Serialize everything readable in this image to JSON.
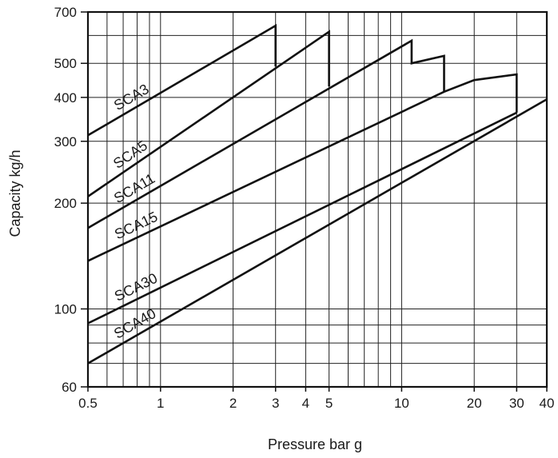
{
  "chart_data": {
    "type": "line",
    "title": "",
    "xlabel": "Pressure bar g",
    "ylabel": "Capacity kg/h",
    "x_scale": "log",
    "y_scale": "log",
    "xlim": [
      0.5,
      40
    ],
    "ylim": [
      60,
      700
    ],
    "grid": true,
    "x_ticks": [
      0.5,
      1,
      2,
      3,
      4,
      5,
      10,
      20,
      30,
      40
    ],
    "x_tick_labels": [
      "0.5",
      "1",
      "2",
      "3",
      "4",
      "5",
      "10",
      "20",
      "30",
      "40"
    ],
    "x_gridlines": [
      0.5,
      0.6,
      0.7,
      0.8,
      0.9,
      1,
      2,
      3,
      4,
      5,
      6,
      7,
      8,
      9,
      10,
      20,
      30,
      40
    ],
    "y_ticks": [
      60,
      100,
      200,
      300,
      400,
      500,
      700
    ],
    "y_tick_labels": [
      "60",
      "100",
      "200",
      "300",
      "400",
      "500",
      "700"
    ],
    "y_gridlines": [
      60,
      70,
      80,
      90,
      100,
      200,
      300,
      400,
      500,
      600,
      700
    ],
    "series": [
      {
        "name": "SCA3",
        "points": [
          [
            0.5,
            312
          ],
          [
            3,
            640
          ],
          [
            3,
            490
          ]
        ]
      },
      {
        "name": "SCA5",
        "points": [
          [
            0.5,
            209
          ],
          [
            5,
            615
          ],
          [
            5,
            430
          ]
        ]
      },
      {
        "name": "SCA11",
        "points": [
          [
            0.5,
            170
          ],
          [
            11,
            580
          ],
          [
            11,
            500
          ],
          [
            15,
            525
          ],
          [
            15,
            415
          ]
        ]
      },
      {
        "name": "SCA15",
        "points": [
          [
            0.5,
            137
          ],
          [
            15,
            415
          ],
          [
            20,
            448
          ],
          [
            30,
            465
          ],
          [
            30,
            362
          ]
        ]
      },
      {
        "name": "SCA30",
        "points": [
          [
            0.5,
            91
          ],
          [
            30,
            362
          ]
        ]
      },
      {
        "name": "SCA40",
        "points": [
          [
            0.5,
            70
          ],
          [
            40,
            395
          ]
        ]
      }
    ]
  }
}
